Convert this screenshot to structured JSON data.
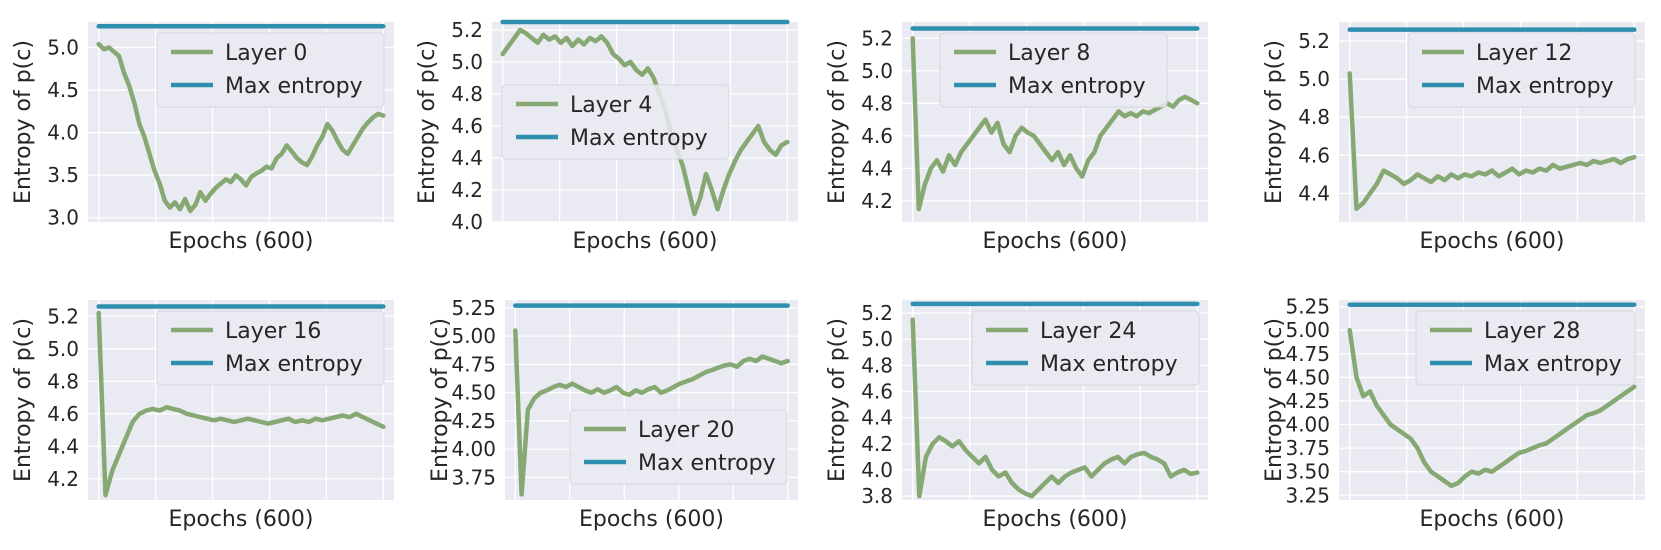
{
  "chart_data": [
    {
      "type": "line",
      "xlabel": "Epochs (600)",
      "ylabel": "Entropy of p(c)",
      "ylim": [
        2.95,
        5.3
      ],
      "yticks": [
        "3.0",
        "3.5",
        "4.0",
        "4.5",
        "5.0"
      ],
      "grid": true,
      "legend_position": "top-right",
      "series": [
        {
          "name": "Layer 0",
          "color": "#86a873",
          "values": [
            5.04,
            4.98,
            5.0,
            4.95,
            4.9,
            4.7,
            4.55,
            4.35,
            4.1,
            3.95,
            3.75,
            3.55,
            3.4,
            3.2,
            3.12,
            3.18,
            3.1,
            3.22,
            3.08,
            3.15,
            3.3,
            3.2,
            3.28,
            3.35,
            3.4,
            3.45,
            3.42,
            3.5,
            3.45,
            3.38,
            3.48,
            3.52,
            3.55,
            3.6,
            3.58,
            3.7,
            3.75,
            3.85,
            3.78,
            3.7,
            3.65,
            3.62,
            3.72,
            3.85,
            3.95,
            4.1,
            4.02,
            3.9,
            3.8,
            3.75,
            3.85,
            3.95,
            4.05,
            4.12,
            4.18,
            4.22,
            4.2
          ]
        },
        {
          "name": "Max entropy",
          "color": "#2e8fae",
          "values": [
            5.25,
            5.25
          ]
        }
      ]
    },
    {
      "type": "line",
      "xlabel": "Epochs (600)",
      "ylabel": "Entropy of p(c)",
      "ylim": [
        4.0,
        5.25
      ],
      "yticks": [
        "4.0",
        "4.2",
        "4.4",
        "4.6",
        "4.8",
        "5.0",
        "5.2"
      ],
      "grid": true,
      "legend_position": "center-left",
      "series": [
        {
          "name": "Layer 4",
          "color": "#86a873",
          "values": [
            5.05,
            5.1,
            5.15,
            5.2,
            5.18,
            5.15,
            5.12,
            5.17,
            5.14,
            5.16,
            5.12,
            5.15,
            5.1,
            5.14,
            5.11,
            5.15,
            5.13,
            5.16,
            5.12,
            5.05,
            5.02,
            4.98,
            5.0,
            4.95,
            4.92,
            4.96,
            4.9,
            4.8,
            4.7,
            4.55,
            4.45,
            4.35,
            4.2,
            4.05,
            4.15,
            4.3,
            4.2,
            4.08,
            4.2,
            4.3,
            4.38,
            4.45,
            4.5,
            4.55,
            4.6,
            4.5,
            4.45,
            4.42,
            4.48,
            4.5
          ]
        },
        {
          "name": "Max entropy",
          "color": "#2e8fae",
          "values": [
            5.25,
            5.25
          ]
        }
      ]
    },
    {
      "type": "line",
      "xlabel": "Epochs (600)",
      "ylabel": "Entropy of p(c)",
      "ylim": [
        4.07,
        5.3
      ],
      "yticks": [
        "4.2",
        "4.4",
        "4.6",
        "4.8",
        "5.0",
        "5.2"
      ],
      "grid": true,
      "legend_position": "top-center",
      "series": [
        {
          "name": "Layer 8",
          "color": "#86a873",
          "values": [
            5.2,
            4.15,
            4.3,
            4.4,
            4.45,
            4.38,
            4.48,
            4.42,
            4.5,
            4.55,
            4.6,
            4.65,
            4.7,
            4.62,
            4.68,
            4.55,
            4.5,
            4.6,
            4.65,
            4.62,
            4.6,
            4.55,
            4.5,
            4.45,
            4.5,
            4.42,
            4.48,
            4.4,
            4.35,
            4.45,
            4.5,
            4.6,
            4.65,
            4.7,
            4.75,
            4.72,
            4.74,
            4.72,
            4.75,
            4.74,
            4.76,
            4.78,
            4.8,
            4.78,
            4.82,
            4.84,
            4.82,
            4.8
          ]
        },
        {
          "name": "Max entropy",
          "color": "#2e8fae",
          "values": [
            5.26,
            5.26
          ]
        }
      ]
    },
    {
      "type": "line",
      "xlabel": "Epochs (600)",
      "ylabel": "Entropy of p(c)",
      "ylim": [
        4.25,
        5.3
      ],
      "yticks": [
        "4.4",
        "4.6",
        "4.8",
        "5.0",
        "5.2"
      ],
      "grid": true,
      "legend_position": "top-right",
      "series": [
        {
          "name": "Layer 12",
          "color": "#86a873",
          "values": [
            5.03,
            4.32,
            4.35,
            4.4,
            4.45,
            4.52,
            4.5,
            4.48,
            4.45,
            4.47,
            4.5,
            4.48,
            4.46,
            4.49,
            4.47,
            4.5,
            4.48,
            4.5,
            4.49,
            4.51,
            4.5,
            4.52,
            4.49,
            4.51,
            4.53,
            4.5,
            4.52,
            4.51,
            4.53,
            4.52,
            4.55,
            4.53,
            4.54,
            4.55,
            4.56,
            4.55,
            4.57,
            4.56,
            4.57,
            4.58,
            4.56,
            4.58,
            4.59
          ]
        },
        {
          "name": "Max entropy",
          "color": "#2e8fae",
          "values": [
            5.26,
            5.26
          ]
        }
      ]
    },
    {
      "type": "line",
      "xlabel": "Epochs (600)",
      "ylabel": "Entropy of p(c)",
      "ylim": [
        4.07,
        5.3
      ],
      "yticks": [
        "4.2",
        "4.4",
        "4.6",
        "4.8",
        "5.0",
        "5.2"
      ],
      "grid": true,
      "legend_position": "top-right",
      "series": [
        {
          "name": "Layer 16",
          "color": "#86a873",
          "values": [
            5.22,
            4.1,
            4.25,
            4.35,
            4.45,
            4.55,
            4.6,
            4.62,
            4.63,
            4.62,
            4.64,
            4.63,
            4.62,
            4.6,
            4.59,
            4.58,
            4.57,
            4.56,
            4.57,
            4.56,
            4.55,
            4.56,
            4.57,
            4.56,
            4.55,
            4.54,
            4.55,
            4.56,
            4.57,
            4.55,
            4.56,
            4.55,
            4.57,
            4.56,
            4.57,
            4.58,
            4.59,
            4.58,
            4.6,
            4.58,
            4.56,
            4.54,
            4.52
          ]
        },
        {
          "name": "Max entropy",
          "color": "#2e8fae",
          "values": [
            5.26,
            5.26
          ]
        }
      ]
    },
    {
      "type": "line",
      "xlabel": "Epochs (600)",
      "ylabel": "Entropy of p(c)",
      "ylim": [
        3.55,
        5.32
      ],
      "yticks": [
        "3.75",
        "4.00",
        "4.25",
        "4.50",
        "4.75",
        "5.00",
        "5.25"
      ],
      "grid": true,
      "legend_position": "bottom-right",
      "series": [
        {
          "name": "Layer 20",
          "color": "#86a873",
          "values": [
            5.05,
            3.6,
            4.35,
            4.45,
            4.5,
            4.52,
            4.55,
            4.57,
            4.55,
            4.58,
            4.55,
            4.52,
            4.5,
            4.53,
            4.5,
            4.52,
            4.55,
            4.5,
            4.48,
            4.52,
            4.5,
            4.53,
            4.55,
            4.5,
            4.52,
            4.55,
            4.58,
            4.6,
            4.62,
            4.65,
            4.68,
            4.7,
            4.72,
            4.74,
            4.75,
            4.73,
            4.78,
            4.8,
            4.78,
            4.82,
            4.8,
            4.78,
            4.76,
            4.78
          ]
        },
        {
          "name": "Max entropy",
          "color": "#2e8fae",
          "values": [
            5.27,
            5.27
          ]
        }
      ]
    },
    {
      "type": "line",
      "xlabel": "Epochs (600)",
      "ylabel": "Entropy of p(c)",
      "ylim": [
        3.77,
        5.3
      ],
      "yticks": [
        "3.8",
        "4.0",
        "4.2",
        "4.4",
        "4.6",
        "4.8",
        "5.0",
        "5.2"
      ],
      "grid": true,
      "legend_position": "top-right",
      "series": [
        {
          "name": "Layer 24",
          "color": "#86a873",
          "values": [
            5.15,
            3.8,
            4.1,
            4.2,
            4.25,
            4.22,
            4.18,
            4.22,
            4.15,
            4.1,
            4.05,
            4.1,
            4.0,
            3.95,
            3.98,
            3.9,
            3.85,
            3.82,
            3.8,
            3.85,
            3.9,
            3.95,
            3.9,
            3.95,
            3.98,
            4.0,
            4.02,
            3.95,
            4.0,
            4.05,
            4.08,
            4.1,
            4.05,
            4.1,
            4.12,
            4.13,
            4.1,
            4.08,
            4.05,
            3.95,
            3.98,
            4.0,
            3.97,
            3.98
          ]
        },
        {
          "name": "Max entropy",
          "color": "#2e8fae",
          "values": [
            5.27,
            5.27
          ]
        }
      ]
    },
    {
      "type": "line",
      "xlabel": "Epochs (600)",
      "ylabel": "Entropy of p(c)",
      "ylim": [
        3.2,
        5.32
      ],
      "yticks": [
        "3.25",
        "3.50",
        "3.75",
        "4.00",
        "4.25",
        "4.50",
        "4.75",
        "5.00",
        "5.25"
      ],
      "grid": true,
      "legend_position": "top-right",
      "series": [
        {
          "name": "Layer 28",
          "color": "#86a873",
          "values": [
            5.0,
            4.5,
            4.3,
            4.35,
            4.2,
            4.1,
            4.0,
            3.95,
            3.9,
            3.85,
            3.75,
            3.6,
            3.5,
            3.45,
            3.4,
            3.35,
            3.38,
            3.45,
            3.5,
            3.48,
            3.52,
            3.5,
            3.55,
            3.6,
            3.65,
            3.7,
            3.72,
            3.75,
            3.78,
            3.8,
            3.85,
            3.9,
            3.95,
            4.0,
            4.05,
            4.1,
            4.12,
            4.15,
            4.2,
            4.25,
            4.3,
            4.35,
            4.4
          ]
        },
        {
          "name": "Max entropy",
          "color": "#2e8fae",
          "values": [
            5.27,
            5.27
          ]
        }
      ]
    }
  ]
}
